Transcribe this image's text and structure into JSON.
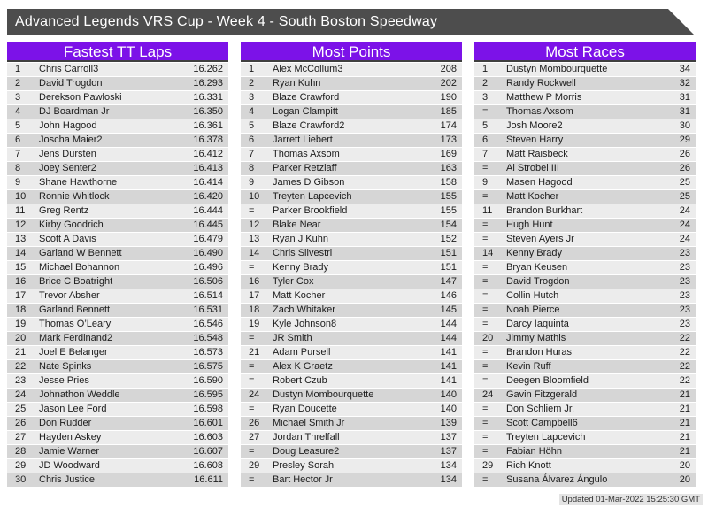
{
  "title": "Advanced Legends VRS Cup - Week 4 - South Boston Speedway",
  "updated": "Updated 01-Mar-2022 15:25:30 GMT",
  "colors": {
    "accent": "#7C12E8",
    "title_bar": "#4D4D4D",
    "row_light": "#ECECEC",
    "row_dark": "#D6D6D6",
    "header_border": "#3F3F3F"
  },
  "boards": [
    {
      "title": "Fastest TT Laps",
      "rows": [
        [
          "1",
          "Chris Carroll3",
          "16.262"
        ],
        [
          "2",
          "David Trogdon",
          "16.293"
        ],
        [
          "3",
          "Derekson Pawloski",
          "16.331"
        ],
        [
          "4",
          "DJ Boardman Jr",
          "16.350"
        ],
        [
          "5",
          "John Hagood",
          "16.361"
        ],
        [
          "6",
          "Joscha Maier2",
          "16.378"
        ],
        [
          "7",
          "Jens Dursten",
          "16.412"
        ],
        [
          "8",
          "Joey Senter2",
          "16.413"
        ],
        [
          "9",
          "Shane Hawthorne",
          "16.414"
        ],
        [
          "10",
          "Ronnie Whitlock",
          "16.420"
        ],
        [
          "11",
          "Greg Rentz",
          "16.444"
        ],
        [
          "12",
          "Kirby Goodrich",
          "16.445"
        ],
        [
          "13",
          "Scott A Davis",
          "16.479"
        ],
        [
          "14",
          "Garland W Bennett",
          "16.490"
        ],
        [
          "15",
          "Michael Bohannon",
          "16.496"
        ],
        [
          "16",
          "Brice C Boatright",
          "16.506"
        ],
        [
          "17",
          "Trevor Absher",
          "16.514"
        ],
        [
          "18",
          "Garland Bennett",
          "16.531"
        ],
        [
          "19",
          "Thomas O’Leary",
          "16.546"
        ],
        [
          "20",
          "Mark Ferdinand2",
          "16.548"
        ],
        [
          "21",
          "Joel E Belanger",
          "16.573"
        ],
        [
          "22",
          "Nate Spinks",
          "16.575"
        ],
        [
          "23",
          "Jesse Pries",
          "16.590"
        ],
        [
          "24",
          "Johnathon Weddle",
          "16.595"
        ],
        [
          "25",
          "Jason Lee Ford",
          "16.598"
        ],
        [
          "26",
          "Don Rudder",
          "16.601"
        ],
        [
          "27",
          "Hayden Askey",
          "16.603"
        ],
        [
          "28",
          "Jamie Warner",
          "16.607"
        ],
        [
          "29",
          "JD Woodward",
          "16.608"
        ],
        [
          "30",
          "Chris Justice",
          "16.611"
        ]
      ]
    },
    {
      "title": "Most Points",
      "rows": [
        [
          "1",
          "Alex McCollum3",
          "208"
        ],
        [
          "2",
          "Ryan Kuhn",
          "202"
        ],
        [
          "3",
          "Blaze Crawford",
          "190"
        ],
        [
          "4",
          "Logan Clampitt",
          "185"
        ],
        [
          "5",
          "Blaze Crawford2",
          "174"
        ],
        [
          "6",
          "Jarrett Liebert",
          "173"
        ],
        [
          "7",
          "Thomas Axsom",
          "169"
        ],
        [
          "8",
          "Parker Retzlaff",
          "163"
        ],
        [
          "9",
          "James D Gibson",
          "158"
        ],
        [
          "10",
          "Treyten Lapcevich",
          "155"
        ],
        [
          "=",
          "Parker Brookfield",
          "155"
        ],
        [
          "12",
          "Blake Near",
          "154"
        ],
        [
          "13",
          "Ryan J Kuhn",
          "152"
        ],
        [
          "14",
          "Chris Silvestri",
          "151"
        ],
        [
          "=",
          "Kenny Brady",
          "151"
        ],
        [
          "16",
          "Tyler Cox",
          "147"
        ],
        [
          "17",
          "Matt Kocher",
          "146"
        ],
        [
          "18",
          "Zach Whitaker",
          "145"
        ],
        [
          "19",
          "Kyle Johnson8",
          "144"
        ],
        [
          "=",
          "JR Smith",
          "144"
        ],
        [
          "21",
          "Adam Pursell",
          "141"
        ],
        [
          "=",
          "Alex K Graetz",
          "141"
        ],
        [
          "=",
          "Robert Czub",
          "141"
        ],
        [
          "24",
          "Dustyn Mombourquette",
          "140"
        ],
        [
          "=",
          "Ryan Doucette",
          "140"
        ],
        [
          "26",
          "Michael Smith Jr",
          "139"
        ],
        [
          "27",
          "Jordan Threlfall",
          "137"
        ],
        [
          "=",
          "Doug Leasure2",
          "137"
        ],
        [
          "29",
          "Presley Sorah",
          "134"
        ],
        [
          "=",
          "Bart Hector Jr",
          "134"
        ]
      ]
    },
    {
      "title": "Most Races",
      "rows": [
        [
          "1",
          "Dustyn Mombourquette",
          "34"
        ],
        [
          "2",
          "Randy Rockwell",
          "32"
        ],
        [
          "3",
          "Matthew P Morris",
          "31"
        ],
        [
          "=",
          "Thomas Axsom",
          "31"
        ],
        [
          "5",
          "Josh Moore2",
          "30"
        ],
        [
          "6",
          "Steven Harry",
          "29"
        ],
        [
          "7",
          "Matt Raisbeck",
          "26"
        ],
        [
          "=",
          "Al Strobel III",
          "26"
        ],
        [
          "9",
          "Masen Hagood",
          "25"
        ],
        [
          "=",
          "Matt Kocher",
          "25"
        ],
        [
          "11",
          "Brandon Burkhart",
          "24"
        ],
        [
          "=",
          "Hugh Hunt",
          "24"
        ],
        [
          "=",
          "Steven Ayers Jr",
          "24"
        ],
        [
          "14",
          "Kenny Brady",
          "23"
        ],
        [
          "=",
          "Bryan Keusen",
          "23"
        ],
        [
          "=",
          "David Trogdon",
          "23"
        ],
        [
          "=",
          "Collin Hutch",
          "23"
        ],
        [
          "=",
          "Noah Pierce",
          "23"
        ],
        [
          "=",
          "Darcy Iaquinta",
          "23"
        ],
        [
          "20",
          "Jimmy Mathis",
          "22"
        ],
        [
          "=",
          "Brandon Huras",
          "22"
        ],
        [
          "=",
          "Kevin Ruff",
          "22"
        ],
        [
          "=",
          "Deegen Bloomfield",
          "22"
        ],
        [
          "24",
          "Gavin Fitzgerald",
          "21"
        ],
        [
          "=",
          "Don Schliem Jr.",
          "21"
        ],
        [
          "=",
          "Scott Campbell6",
          "21"
        ],
        [
          "=",
          "Treyten Lapcevich",
          "21"
        ],
        [
          "=",
          "Fabian Höhn",
          "21"
        ],
        [
          "29",
          "Rich Knott",
          "20"
        ],
        [
          "=",
          "Susana Álvarez Ángulo",
          "20"
        ]
      ]
    }
  ]
}
